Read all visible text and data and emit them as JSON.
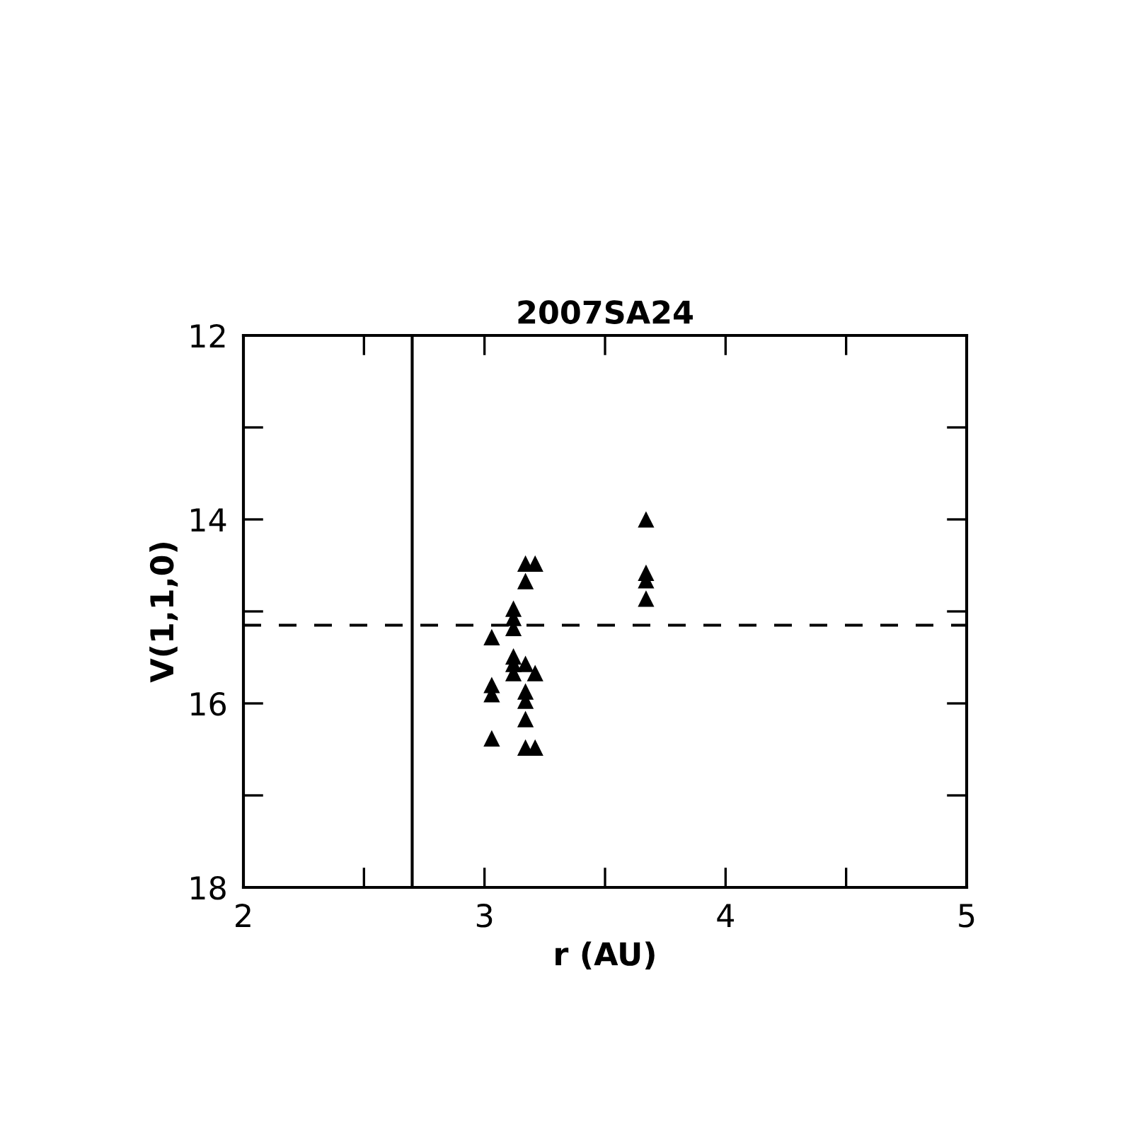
{
  "chart_data": {
    "type": "scatter",
    "title": "2007SA24",
    "xlabel": "r (AU)",
    "ylabel": "V(1,1,0)",
    "x": [
      3.67,
      3.67,
      3.67,
      3.67,
      3.17,
      3.21,
      3.17,
      3.12,
      3.12,
      3.12,
      3.03,
      3.12,
      3.12,
      3.12,
      3.17,
      3.21,
      3.03,
      3.03,
      3.17,
      3.17,
      3.17,
      3.03,
      3.17,
      3.21
    ],
    "series": [
      {
        "color": "#000000",
        "values": [
          14.0,
          14.58,
          14.66,
          14.86,
          14.48,
          14.48,
          14.67,
          14.97,
          15.07,
          15.18,
          15.28,
          15.49,
          15.57,
          15.67,
          15.57,
          15.67,
          15.8,
          15.9,
          15.87,
          15.97,
          16.17,
          16.38,
          16.48,
          16.48
        ]
      }
    ],
    "marker": "triangle",
    "xlim": [
      2,
      5
    ],
    "ylim": [
      18,
      12
    ],
    "xticks": [
      2,
      {
        "value": 2.5,
        "label": null
      },
      3,
      {
        "value": 3.5,
        "label": null
      },
      4,
      {
        "value": 4.5,
        "label": null
      },
      5
    ],
    "yticks": [
      12,
      {
        "value": 13,
        "label": null
      },
      14,
      {
        "value": 15,
        "label": null
      },
      16,
      {
        "value": 17,
        "label": null
      },
      18
    ],
    "ref_lines": [
      {
        "axis": "x",
        "value": 2.7,
        "line_style": "solid",
        "color": "#000000"
      },
      {
        "axis": "y",
        "value": 15.15,
        "line_style": "dashed",
        "color": "#000000"
      }
    ],
    "grid": false
  }
}
